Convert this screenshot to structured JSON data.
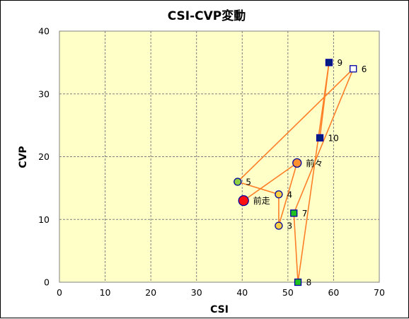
{
  "colors": {
    "plot_bg": "#ffffc8",
    "grid": "#808080",
    "line": "#ff7f27",
    "marker_stroke": "#0000a0",
    "navy": "#002080",
    "green": "#20c020",
    "yellow": "#f8d040",
    "orange": "#ff9030",
    "red": "#ff1010",
    "lime": "#90d040",
    "white": "#ffffff"
  },
  "chart_data": {
    "type": "scatter",
    "title": "CSI-CVP変動",
    "xlabel": "CSI",
    "ylabel": "CVP",
    "xlim": [
      0,
      70
    ],
    "ylim": [
      0,
      40
    ],
    "xticks": [
      0,
      10,
      20,
      30,
      40,
      50,
      60,
      70
    ],
    "yticks": [
      0,
      10,
      20,
      30,
      40
    ],
    "grid": true,
    "path_order": [
      "前走",
      "前々",
      "3",
      "4",
      "5",
      "6",
      "7",
      "8",
      "9",
      "10"
    ],
    "points": [
      {
        "label": "前走",
        "x": 40.3,
        "y": 13,
        "shape": "circle",
        "color": "red",
        "size": "large"
      },
      {
        "label": "前々",
        "x": 52.0,
        "y": 19,
        "shape": "circle",
        "color": "orange",
        "size": "medium"
      },
      {
        "label": "3",
        "x": 48.0,
        "y": 9,
        "shape": "circle",
        "color": "yellow",
        "size": "small"
      },
      {
        "label": "4",
        "x": 48.0,
        "y": 14,
        "shape": "circle",
        "color": "yellow",
        "size": "small"
      },
      {
        "label": "5",
        "x": 39.0,
        "y": 16,
        "shape": "circle",
        "color": "lime",
        "size": "small"
      },
      {
        "label": "6",
        "x": 64.3,
        "y": 34,
        "shape": "square",
        "color": "white",
        "size": "small"
      },
      {
        "label": "7",
        "x": 51.3,
        "y": 11,
        "shape": "square",
        "color": "green",
        "size": "small"
      },
      {
        "label": "8",
        "x": 52.2,
        "y": 0,
        "shape": "square",
        "color": "green",
        "size": "small"
      },
      {
        "label": "9",
        "x": 59.0,
        "y": 35,
        "shape": "square",
        "color": "navy",
        "size": "small"
      },
      {
        "label": "10",
        "x": 57.0,
        "y": 23,
        "shape": "square",
        "color": "navy",
        "size": "small"
      }
    ]
  }
}
